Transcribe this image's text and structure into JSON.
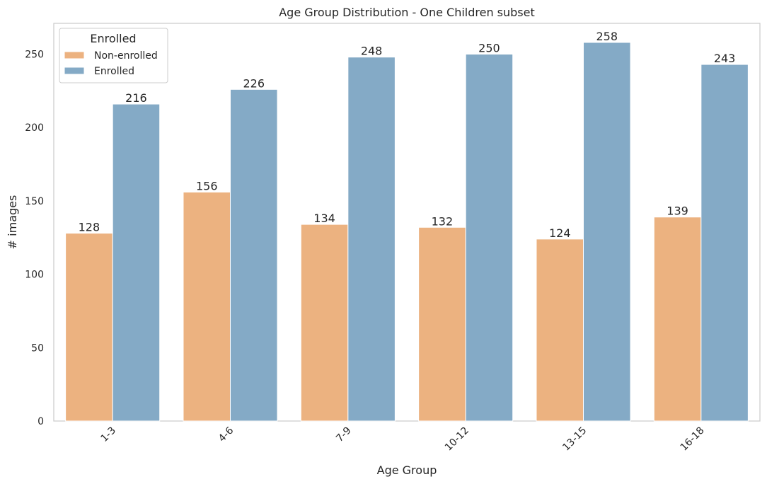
{
  "chart_data": {
    "type": "bar",
    "title": "Age Group Distribution - One Children subset",
    "xlabel": "Age Group",
    "ylabel": "# images",
    "categories": [
      "1-3",
      "4-6",
      "7-9",
      "10-12",
      "13-15",
      "16-18"
    ],
    "series": [
      {
        "name": "Non-enrolled",
        "color": "#ecb280",
        "values": [
          128,
          156,
          134,
          132,
          124,
          139
        ]
      },
      {
        "name": "Enrolled",
        "color": "#84aac6",
        "values": [
          216,
          226,
          248,
          250,
          258,
          243
        ]
      }
    ],
    "ylim": [
      0,
      271
    ],
    "yticks": [
      0,
      50,
      100,
      150,
      200,
      250
    ],
    "grid": false,
    "legend": {
      "title": "Enrolled",
      "placement": "top-left"
    },
    "xtick_rotation": 45
  }
}
